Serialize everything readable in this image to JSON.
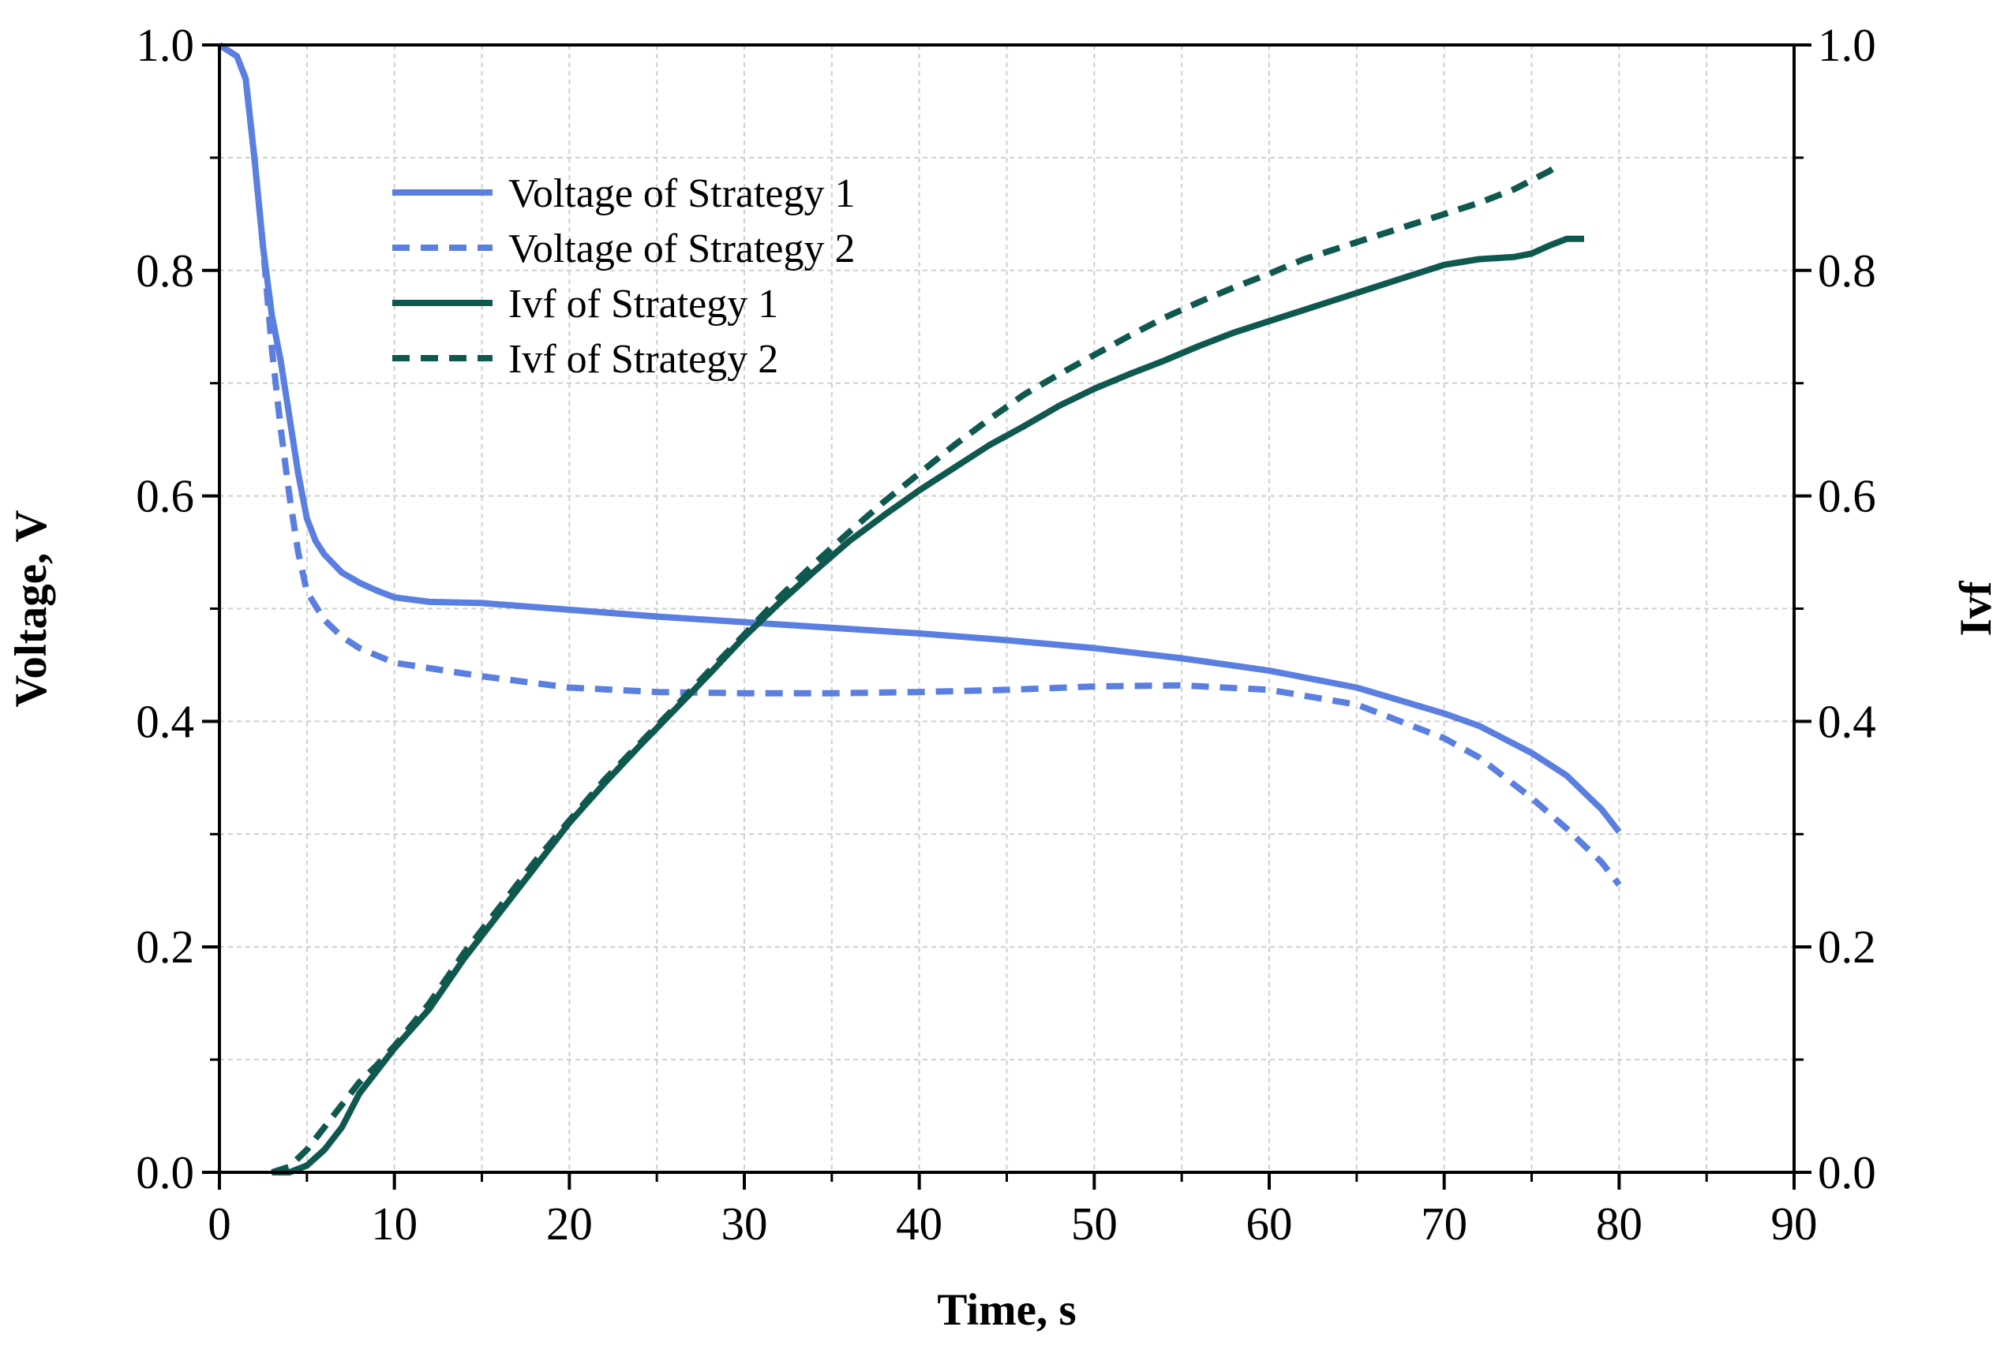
{
  "chart_data": {
    "type": "line",
    "title": "",
    "xlabel": "Time, s",
    "ylabel_left": "Voltage, V",
    "ylabel_right": "Ivf",
    "xlim": [
      0,
      90
    ],
    "ylim_left": [
      0.0,
      1.0
    ],
    "ylim_right": [
      0.0,
      1.0
    ],
    "x_ticks": [
      "0",
      "10",
      "20",
      "30",
      "40",
      "50",
      "60",
      "70",
      "80",
      "90"
    ],
    "y_ticks_left": [
      "0.0",
      "0.2",
      "0.4",
      "0.6",
      "0.8",
      "1.0"
    ],
    "y_ticks_right": [
      "0.0",
      "0.2",
      "0.4",
      "0.6",
      "0.8",
      "1.0"
    ],
    "grid": true,
    "legend_position": "top-left",
    "series": [
      {
        "name": "Voltage of Strategy 1",
        "axis": "left",
        "color": "#5b7fe0",
        "dash": "solid",
        "points": [
          [
            0,
            1.0
          ],
          [
            1,
            0.99
          ],
          [
            1.5,
            0.97
          ],
          [
            2,
            0.9
          ],
          [
            2.5,
            0.82
          ],
          [
            3,
            0.76
          ],
          [
            3.5,
            0.72
          ],
          [
            4,
            0.67
          ],
          [
            4.5,
            0.62
          ],
          [
            5,
            0.58
          ],
          [
            5.5,
            0.56
          ],
          [
            6,
            0.548
          ],
          [
            7,
            0.532
          ],
          [
            8,
            0.523
          ],
          [
            9,
            0.516
          ],
          [
            10,
            0.51
          ],
          [
            12,
            0.506
          ],
          [
            15,
            0.505
          ],
          [
            20,
            0.499
          ],
          [
            25,
            0.493
          ],
          [
            30,
            0.488
          ],
          [
            35,
            0.483
          ],
          [
            40,
            0.478
          ],
          [
            45,
            0.472
          ],
          [
            50,
            0.465
          ],
          [
            55,
            0.456
          ],
          [
            60,
            0.445
          ],
          [
            65,
            0.43
          ],
          [
            70,
            0.407
          ],
          [
            72,
            0.396
          ],
          [
            75,
            0.372
          ],
          [
            77,
            0.352
          ],
          [
            79,
            0.322
          ],
          [
            80,
            0.302
          ]
        ]
      },
      {
        "name": "Voltage of Strategy 2",
        "axis": "left",
        "color": "#5b7fe0",
        "dash": "dashed",
        "points": [
          [
            0,
            1.0
          ],
          [
            1,
            0.99
          ],
          [
            1.5,
            0.97
          ],
          [
            2,
            0.9
          ],
          [
            2.5,
            0.82
          ],
          [
            3,
            0.73
          ],
          [
            3.5,
            0.66
          ],
          [
            4,
            0.6
          ],
          [
            4.5,
            0.55
          ],
          [
            5,
            0.515
          ],
          [
            6,
            0.49
          ],
          [
            7,
            0.475
          ],
          [
            8,
            0.465
          ],
          [
            10,
            0.452
          ],
          [
            15,
            0.44
          ],
          [
            20,
            0.43
          ],
          [
            25,
            0.426
          ],
          [
            30,
            0.425
          ],
          [
            35,
            0.425
          ],
          [
            40,
            0.426
          ],
          [
            45,
            0.428
          ],
          [
            50,
            0.431
          ],
          [
            55,
            0.432
          ],
          [
            60,
            0.428
          ],
          [
            65,
            0.415
          ],
          [
            70,
            0.385
          ],
          [
            72,
            0.368
          ],
          [
            75,
            0.332
          ],
          [
            77,
            0.305
          ],
          [
            79,
            0.275
          ],
          [
            80,
            0.255
          ]
        ]
      },
      {
        "name": "Ivf of Strategy 1",
        "axis": "right",
        "color": "#0f5850",
        "dash": "solid",
        "points": [
          [
            3,
            0.0
          ],
          [
            4,
            0.0
          ],
          [
            5,
            0.006
          ],
          [
            6,
            0.02
          ],
          [
            7,
            0.04
          ],
          [
            8,
            0.07
          ],
          [
            9,
            0.09
          ],
          [
            10,
            0.11
          ],
          [
            12,
            0.145
          ],
          [
            14,
            0.19
          ],
          [
            16,
            0.23
          ],
          [
            18,
            0.27
          ],
          [
            20,
            0.31
          ],
          [
            22,
            0.345
          ],
          [
            24,
            0.378
          ],
          [
            26,
            0.41
          ],
          [
            28,
            0.442
          ],
          [
            30,
            0.475
          ],
          [
            32,
            0.505
          ],
          [
            34,
            0.533
          ],
          [
            36,
            0.56
          ],
          [
            38,
            0.583
          ],
          [
            40,
            0.605
          ],
          [
            42,
            0.625
          ],
          [
            44,
            0.645
          ],
          [
            46,
            0.662
          ],
          [
            48,
            0.68
          ],
          [
            50,
            0.695
          ],
          [
            52,
            0.708
          ],
          [
            54,
            0.72
          ],
          [
            56,
            0.733
          ],
          [
            58,
            0.745
          ],
          [
            60,
            0.755
          ],
          [
            62,
            0.765
          ],
          [
            64,
            0.775
          ],
          [
            66,
            0.785
          ],
          [
            68,
            0.795
          ],
          [
            70,
            0.805
          ],
          [
            72,
            0.81
          ],
          [
            74,
            0.812
          ],
          [
            75,
            0.815
          ],
          [
            76,
            0.822
          ],
          [
            77,
            0.828
          ],
          [
            78,
            0.828
          ]
        ]
      },
      {
        "name": "Ivf of Strategy 2",
        "axis": "right",
        "color": "#0f5850",
        "dash": "dashed",
        "points": [
          [
            3,
            0.0
          ],
          [
            4,
            0.005
          ],
          [
            5,
            0.02
          ],
          [
            6,
            0.04
          ],
          [
            7,
            0.06
          ],
          [
            8,
            0.08
          ],
          [
            9,
            0.095
          ],
          [
            10,
            0.112
          ],
          [
            12,
            0.15
          ],
          [
            14,
            0.195
          ],
          [
            16,
            0.235
          ],
          [
            18,
            0.275
          ],
          [
            20,
            0.312
          ],
          [
            22,
            0.348
          ],
          [
            24,
            0.38
          ],
          [
            26,
            0.412
          ],
          [
            28,
            0.445
          ],
          [
            30,
            0.477
          ],
          [
            32,
            0.51
          ],
          [
            34,
            0.54
          ],
          [
            36,
            0.568
          ],
          [
            38,
            0.595
          ],
          [
            40,
            0.62
          ],
          [
            42,
            0.645
          ],
          [
            44,
            0.668
          ],
          [
            46,
            0.69
          ],
          [
            48,
            0.708
          ],
          [
            50,
            0.725
          ],
          [
            52,
            0.742
          ],
          [
            54,
            0.758
          ],
          [
            56,
            0.772
          ],
          [
            58,
            0.785
          ],
          [
            60,
            0.797
          ],
          [
            62,
            0.81
          ],
          [
            64,
            0.82
          ],
          [
            66,
            0.83
          ],
          [
            68,
            0.84
          ],
          [
            70,
            0.85
          ],
          [
            72,
            0.86
          ],
          [
            74,
            0.872
          ],
          [
            76,
            0.888
          ],
          [
            76.5,
            0.893
          ]
        ]
      }
    ]
  }
}
